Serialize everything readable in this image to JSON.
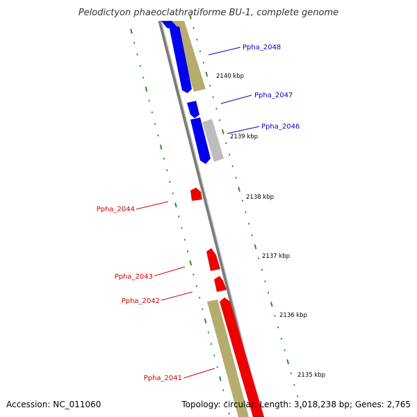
{
  "title": "Pelodictyon phaeoclathratiforme BU-1, complete genome",
  "footer": {
    "accession": "Accession: NC_011060",
    "topology": "Topology: circular; Length: 3,018,238 bp; Genes: 2,765"
  },
  "colors": {
    "backbone": "#8c8c8c",
    "forward_gene": "#0000ee",
    "reverse_gene": "#ee0000",
    "other_gene_olive": "#b5ac6e",
    "other_gene_grey": "#bbbbbb",
    "tick": "#2e8b2e",
    "forward_label": "#0000cc",
    "reverse_label": "#cc0000"
  },
  "scale_labels": [
    "2140 kbp",
    "2139 kbp",
    "2138 kbp",
    "2137 kbp",
    "2136 kbp",
    "2135 kbp"
  ],
  "genes": {
    "forward": [
      {
        "label": "Ppha_2048",
        "name": "gene-ppha-2048"
      },
      {
        "label": "Ppha_2047",
        "name": "gene-ppha-2047"
      },
      {
        "label": "Ppha_2046",
        "name": "gene-ppha-2046"
      }
    ],
    "reverse": [
      {
        "label": "Ppha_2044",
        "name": "gene-ppha-2044"
      },
      {
        "label": "Ppha_2043",
        "name": "gene-ppha-2043"
      },
      {
        "label": "Ppha_2042",
        "name": "gene-ppha-2042"
      },
      {
        "label": "Ppha_2041",
        "name": "gene-ppha-2041"
      }
    ]
  }
}
